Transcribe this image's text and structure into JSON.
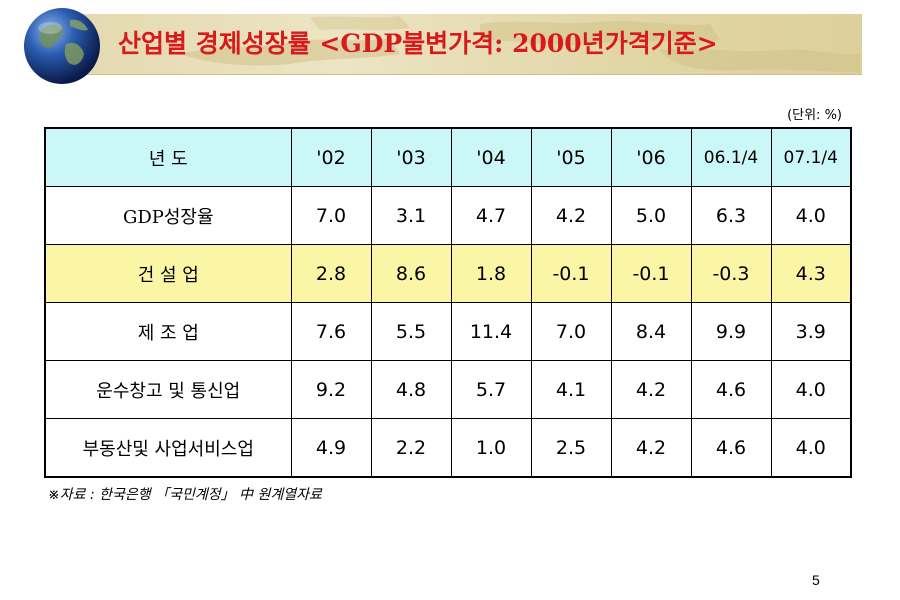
{
  "title": "산업별 경제성장률 <GDP불변가격: 2000년가격기준>",
  "unit": "(단위: %)",
  "table": {
    "header": [
      "년  도",
      "'02",
      "'03",
      "'04",
      "'05",
      "'06",
      "06.1/4",
      "07.1/4"
    ],
    "rows": [
      {
        "label": "GDP성장율",
        "values": [
          "7.0",
          "3.1",
          "4.7",
          "4.2",
          "5.0",
          "6.3",
          "4.0"
        ],
        "highlight": false
      },
      {
        "label": "건 설 업",
        "values": [
          "2.8",
          "8.6",
          "1.8",
          "-0.1",
          "-0.1",
          "-0.3",
          "4.3"
        ],
        "highlight": true
      },
      {
        "label": "제 조 업",
        "values": [
          "7.6",
          "5.5",
          "11.4",
          "7.0",
          "8.4",
          "9.9",
          "3.9"
        ],
        "highlight": false
      },
      {
        "label": "운수창고 및 통신업",
        "values": [
          "9.2",
          "4.8",
          "5.7",
          "4.1",
          "4.2",
          "4.6",
          "4.0"
        ],
        "highlight": false
      },
      {
        "label": "부동산및 사업서비스업",
        "values": [
          "4.9",
          "2.2",
          "1.0",
          "2.5",
          "4.2",
          "4.6",
          "4.0"
        ],
        "highlight": false
      }
    ]
  },
  "source": "※자료 : 한국은행 「국민계정」 中 원계열자료",
  "page_number": "5",
  "colors": {
    "title_text": "#d91a1a",
    "header_bg": "#ccf7f9",
    "highlight_bg": "#fbf5a6",
    "banner_bg": "#e4d9ae"
  },
  "icons": {
    "logo": "globe-icon"
  }
}
